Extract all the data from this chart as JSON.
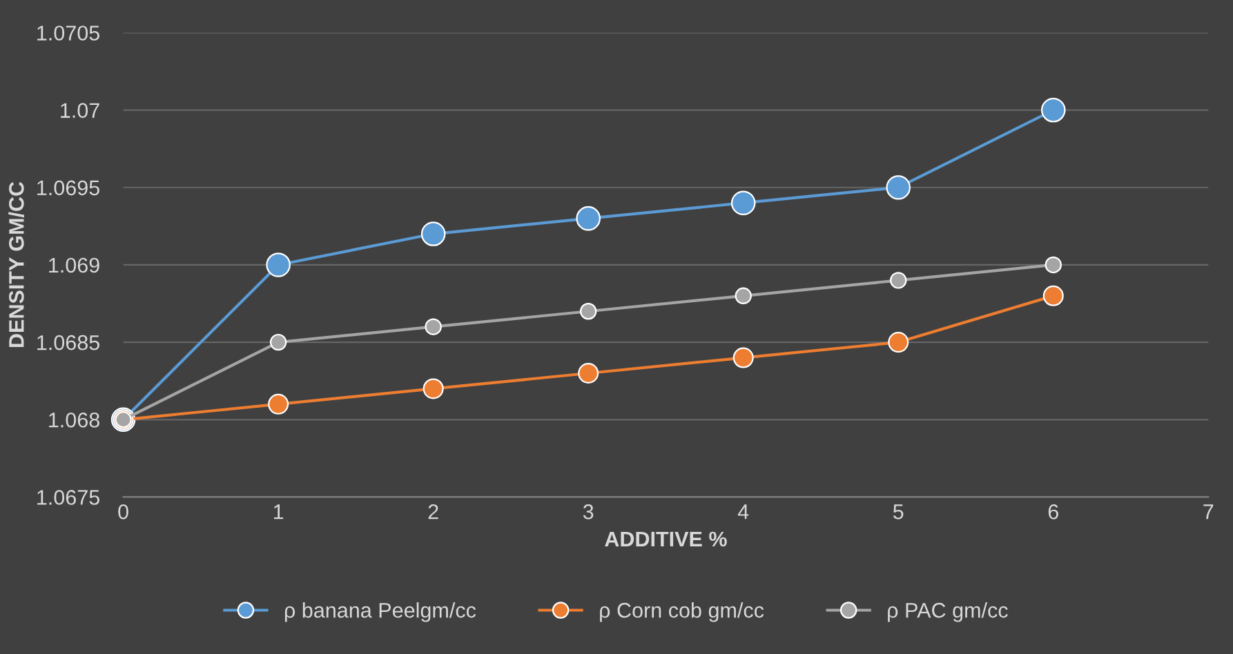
{
  "chart_data": {
    "type": "line",
    "xlabel": "ADDITIVE %",
    "ylabel": "DENSITY GM/CC",
    "x": [
      0,
      1,
      2,
      3,
      4,
      5,
      6
    ],
    "series": [
      {
        "name": "ρ banana Peelgm/cc",
        "color": "#5b9bd5",
        "values": [
          1.068,
          1.069,
          1.0692,
          1.0693,
          1.0694,
          1.0695,
          1.07
        ]
      },
      {
        "name": "ρ Corn cob gm/cc",
        "color": "#ed7d31",
        "values": [
          1.068,
          1.0681,
          1.0682,
          1.0683,
          1.0684,
          1.0685,
          1.0688
        ]
      },
      {
        "name": "ρ PAC gm/cc",
        "color": "#a5a5a5",
        "values": [
          1.068,
          1.0685,
          1.0686,
          1.0687,
          1.0688,
          1.0689,
          1.069
        ]
      }
    ],
    "xlim": [
      0,
      7
    ],
    "xticks": [
      0,
      1,
      2,
      3,
      4,
      5,
      6,
      7
    ],
    "ylim": [
      1.0675,
      1.0705
    ],
    "yticks": [
      1.0675,
      1.068,
      1.0685,
      1.069,
      1.0695,
      1.07,
      1.0705
    ],
    "grid": "y",
    "legend": "bottom",
    "marker": "circle",
    "line_style": "solid"
  }
}
